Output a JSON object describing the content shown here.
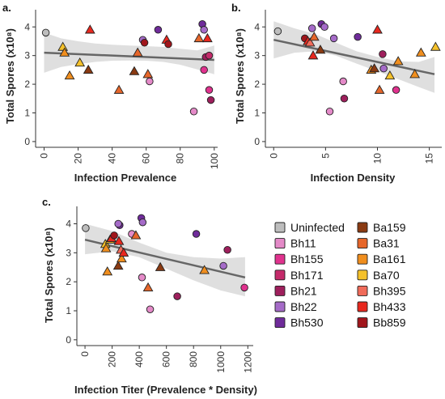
{
  "colors": {
    "Uninfected": "#bdbdbd",
    "Bh11": "#e48ac8",
    "Bh155": "#e0328e",
    "Bh171": "#c42a6a",
    "Bh21": "#9e1f5c",
    "Bh22": "#a56bc8",
    "Bh530": "#6f2b9a",
    "Ba159": "#8a3a12",
    "Ba31": "#e6662a",
    "Ba161": "#f08e1e",
    "Ba70": "#f5c12a",
    "Bh395": "#f06b5a",
    "Bh433": "#e8281e",
    "Bb859": "#a0151b",
    "fit_line": "#666666",
    "ci_band": "#d9d9d9"
  },
  "legend": {
    "left": [
      "Uninfected",
      "Bh11",
      "Bh155",
      "Bh171",
      "Bh21",
      "Bh22",
      "Bh530"
    ],
    "right": [
      "Ba159",
      "Ba31",
      "Ba161",
      "Ba70",
      "Bh395",
      "Bh433",
      "Bb859"
    ]
  },
  "shapes": {
    "circle": [
      "Uninfected",
      "Bh11",
      "Bh155",
      "Bh171",
      "Bh21",
      "Bh22",
      "Bh530",
      "Bb859"
    ],
    "triangle": [
      "Ba159",
      "Ba31",
      "Ba161",
      "Ba70",
      "Bh395",
      "Bh433"
    ]
  },
  "chart_data": [
    {
      "panel": "a.",
      "type": "scatter",
      "xlabel": "Infection Prevalence",
      "ylabel": "Total Spores (x10⁸)",
      "xlim": [
        -5,
        102
      ],
      "ylim": [
        -0.2,
        4.6
      ],
      "xticks": [
        "0",
        "20",
        "40",
        "60",
        "80",
        "100"
      ],
      "yticks": [
        "0",
        "1",
        "2",
        "3",
        "4"
      ],
      "fit": {
        "x": [
          0,
          100
        ],
        "y": [
          3.1,
          2.85
        ]
      },
      "ci": {
        "x": [
          0,
          10,
          20,
          30,
          40,
          50,
          60,
          70,
          80,
          90,
          100
        ],
        "lo": [
          2.4,
          2.6,
          2.7,
          2.78,
          2.82,
          2.83,
          2.82,
          2.78,
          2.68,
          2.52,
          2.35
        ],
        "hi": [
          3.8,
          3.6,
          3.5,
          3.42,
          3.38,
          3.35,
          3.33,
          3.3,
          3.24,
          3.18,
          3.35
        ]
      },
      "points": [
        {
          "s": "Uninfected",
          "x": 1,
          "y": 3.8
        },
        {
          "s": "Ba70",
          "x": 11,
          "y": 3.3
        },
        {
          "s": "Ba161",
          "x": 12,
          "y": 3.1
        },
        {
          "s": "Ba161",
          "x": 15,
          "y": 2.3
        },
        {
          "s": "Ba70",
          "x": 21,
          "y": 2.75
        },
        {
          "s": "Bh433",
          "x": 27,
          "y": 3.9
        },
        {
          "s": "Ba159",
          "x": 26,
          "y": 2.5
        },
        {
          "s": "Ba31",
          "x": 44,
          "y": 1.8
        },
        {
          "s": "Ba159",
          "x": 53,
          "y": 2.45
        },
        {
          "s": "Ba31",
          "x": 55,
          "y": 3.1
        },
        {
          "s": "Bh22",
          "x": 58,
          "y": 3.55
        },
        {
          "s": "Bb859",
          "x": 59,
          "y": 3.45
        },
        {
          "s": "Ba31",
          "x": 61,
          "y": 2.35
        },
        {
          "s": "Bh11",
          "x": 62,
          "y": 2.1
        },
        {
          "s": "Bh530",
          "x": 67,
          "y": 3.9
        },
        {
          "s": "Bh433",
          "x": 72,
          "y": 3.55
        },
        {
          "s": "Bb859",
          "x": 73,
          "y": 3.4
        },
        {
          "s": "Bh11",
          "x": 88,
          "y": 1.05
        },
        {
          "s": "Ba31",
          "x": 91,
          "y": 3.6
        },
        {
          "s": "Bh530",
          "x": 93,
          "y": 4.1
        },
        {
          "s": "Bh22",
          "x": 94,
          "y": 3.9
        },
        {
          "s": "Bh155",
          "x": 94,
          "y": 2.5
        },
        {
          "s": "Bh433",
          "x": 96,
          "y": 3.6
        },
        {
          "s": "Bh21",
          "x": 95,
          "y": 2.95
        },
        {
          "s": "Bh155",
          "x": 97,
          "y": 1.8
        },
        {
          "s": "Bh171",
          "x": 97,
          "y": 3.0
        },
        {
          "s": "Bh21",
          "x": 98,
          "y": 1.45
        }
      ]
    },
    {
      "panel": "b.",
      "type": "scatter",
      "xlabel": "Infection Density",
      "ylabel": "Total Spores (x10⁸)",
      "xlim": [
        -0.8,
        16.2
      ],
      "ylim": [
        -0.2,
        4.6
      ],
      "xticks": [
        "0",
        "5",
        "10",
        "15"
      ],
      "yticks": [
        "0",
        "1",
        "2",
        "3",
        "4"
      ],
      "fit": {
        "x": [
          0,
          15.5
        ],
        "y": [
          3.55,
          2.35
        ]
      },
      "ci": {
        "x": [
          0,
          2,
          4,
          6,
          8,
          10,
          12,
          14,
          15.5
        ],
        "lo": [
          2.9,
          3.1,
          3.15,
          3.0,
          2.72,
          2.45,
          2.18,
          1.9,
          1.7
        ],
        "hi": [
          4.2,
          3.95,
          3.75,
          3.45,
          3.15,
          2.95,
          2.8,
          2.78,
          2.95
        ]
      },
      "points": [
        {
          "s": "Uninfected",
          "x": 0.4,
          "y": 3.85
        },
        {
          "s": "Bb859",
          "x": 3.0,
          "y": 3.6
        },
        {
          "s": "Bh433",
          "x": 3.3,
          "y": 3.5
        },
        {
          "s": "Bh395",
          "x": 3.5,
          "y": 3.45
        },
        {
          "s": "Bh22",
          "x": 3.7,
          "y": 3.95
        },
        {
          "s": "Ba31",
          "x": 3.9,
          "y": 3.65
        },
        {
          "s": "Bh433",
          "x": 3.8,
          "y": 3.0
        },
        {
          "s": "Ba159",
          "x": 4.5,
          "y": 3.2
        },
        {
          "s": "Bh530",
          "x": 4.6,
          "y": 4.1
        },
        {
          "s": "Bh22",
          "x": 4.9,
          "y": 4.0
        },
        {
          "s": "Bh11",
          "x": 5.4,
          "y": 1.05
        },
        {
          "s": "Bh22",
          "x": 5.8,
          "y": 3.6
        },
        {
          "s": "Bh11",
          "x": 6.7,
          "y": 2.1
        },
        {
          "s": "Bh21",
          "x": 6.8,
          "y": 1.5
        },
        {
          "s": "Bh530",
          "x": 8.1,
          "y": 3.65
        },
        {
          "s": "Ba161",
          "x": 9.4,
          "y": 2.5
        },
        {
          "s": "Ba159",
          "x": 9.7,
          "y": 2.55
        },
        {
          "s": "Bh433",
          "x": 10.0,
          "y": 3.9
        },
        {
          "s": "Ba31",
          "x": 10.2,
          "y": 1.8
        },
        {
          "s": "Bh21",
          "x": 10.5,
          "y": 3.05
        },
        {
          "s": "Bh22",
          "x": 10.6,
          "y": 2.55
        },
        {
          "s": "Ba70",
          "x": 11.2,
          "y": 2.3
        },
        {
          "s": "Bh155",
          "x": 11.8,
          "y": 1.8
        },
        {
          "s": "Ba161",
          "x": 12.0,
          "y": 2.8
        },
        {
          "s": "Ba161",
          "x": 13.6,
          "y": 2.35
        },
        {
          "s": "Ba161",
          "x": 14.2,
          "y": 3.1
        },
        {
          "s": "Ba70",
          "x": 15.6,
          "y": 3.3
        }
      ]
    },
    {
      "panel": "c.",
      "type": "scatter",
      "xlabel": "Infection Titer (Prevalence * Density)",
      "ylabel": "Total Spores (x10⁸)",
      "xlim": [
        -60,
        1240
      ],
      "ylim": [
        -0.2,
        4.6
      ],
      "xticks": [
        "0",
        "200",
        "400",
        "600",
        "800",
        "1000",
        "1200"
      ],
      "yticks": [
        "0",
        "1",
        "2",
        "3",
        "4"
      ],
      "fit": {
        "x": [
          0,
          1180
        ],
        "y": [
          3.45,
          2.15
        ]
      },
      "ci": {
        "x": [
          0,
          200,
          400,
          600,
          800,
          1000,
          1180
        ],
        "lo": [
          2.95,
          3.05,
          2.85,
          2.45,
          2.05,
          1.7,
          1.5
        ],
        "hi": [
          4.0,
          3.75,
          3.35,
          3.0,
          2.85,
          2.8,
          2.85
        ]
      },
      "points": [
        {
          "s": "Uninfected",
          "x": 5,
          "y": 3.85
        },
        {
          "s": "Ba70",
          "x": 150,
          "y": 3.3
        },
        {
          "s": "Ba161",
          "x": 155,
          "y": 3.15
        },
        {
          "s": "Ba161",
          "x": 165,
          "y": 2.35
        },
        {
          "s": "Ba70",
          "x": 185,
          "y": 3.45
        },
        {
          "s": "Bh433",
          "x": 195,
          "y": 3.5
        },
        {
          "s": "Bb859",
          "x": 215,
          "y": 3.6
        },
        {
          "s": "Bh530",
          "x": 255,
          "y": 3.95
        },
        {
          "s": "Bh22",
          "x": 245,
          "y": 4.0
        },
        {
          "s": "Bh433",
          "x": 250,
          "y": 3.4
        },
        {
          "s": "Ba159",
          "x": 245,
          "y": 2.55
        },
        {
          "s": "Ba161",
          "x": 270,
          "y": 2.8
        },
        {
          "s": "Bh395",
          "x": 265,
          "y": 3.1
        },
        {
          "s": "Bh433",
          "x": 285,
          "y": 3.0
        },
        {
          "s": "Bh11",
          "x": 345,
          "y": 3.65
        },
        {
          "s": "Ba31",
          "x": 375,
          "y": 3.6
        },
        {
          "s": "Bh530",
          "x": 415,
          "y": 4.2
        },
        {
          "s": "Bh22",
          "x": 425,
          "y": 4.05
        },
        {
          "s": "Bh11",
          "x": 420,
          "y": 2.15
        },
        {
          "s": "Ba31",
          "x": 465,
          "y": 1.8
        },
        {
          "s": "Bh11",
          "x": 480,
          "y": 1.05
        },
        {
          "s": "Ba159",
          "x": 555,
          "y": 2.5
        },
        {
          "s": "Bh21",
          "x": 680,
          "y": 1.5
        },
        {
          "s": "Bh530",
          "x": 820,
          "y": 3.65
        },
        {
          "s": "Ba161",
          "x": 880,
          "y": 2.4
        },
        {
          "s": "Bh21",
          "x": 1050,
          "y": 3.1
        },
        {
          "s": "Bh22",
          "x": 1020,
          "y": 2.55
        },
        {
          "s": "Bh155",
          "x": 1175,
          "y": 1.8
        }
      ]
    }
  ]
}
